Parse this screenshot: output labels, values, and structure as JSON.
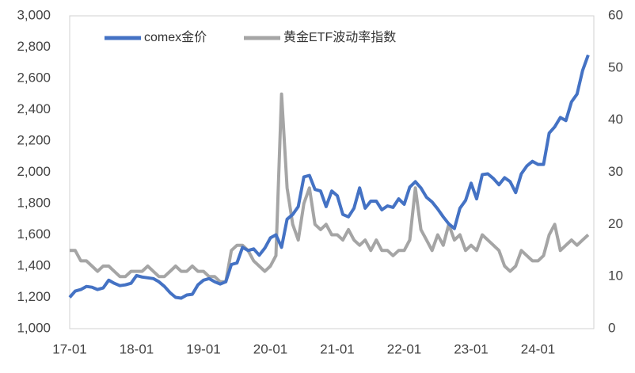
{
  "chart_data": {
    "type": "line",
    "categories": [
      "17-01",
      null,
      null,
      null,
      null,
      null,
      null,
      null,
      null,
      null,
      null,
      null,
      "18-01",
      null,
      null,
      null,
      null,
      null,
      null,
      null,
      null,
      null,
      null,
      null,
      "19-01",
      null,
      null,
      null,
      null,
      null,
      null,
      null,
      null,
      null,
      null,
      null,
      "20-01",
      null,
      null,
      null,
      null,
      null,
      null,
      null,
      null,
      null,
      null,
      null,
      "21-01",
      null,
      null,
      null,
      null,
      null,
      null,
      null,
      null,
      null,
      null,
      null,
      "22-01",
      null,
      null,
      null,
      null,
      null,
      null,
      null,
      null,
      null,
      null,
      null,
      "23-01",
      null,
      null,
      null,
      null,
      null,
      null,
      null,
      null,
      null,
      null,
      null,
      "24-01",
      null,
      null,
      null,
      null,
      null,
      null,
      null,
      null,
      null
    ],
    "series": [
      {
        "name": "comex金价",
        "color": "#4472c4",
        "axis": "y",
        "values": [
          1200,
          1240,
          1250,
          1270,
          1265,
          1250,
          1260,
          1310,
          1290,
          1275,
          1280,
          1290,
          1340,
          1330,
          1325,
          1320,
          1300,
          1270,
          1230,
          1200,
          1195,
          1215,
          1220,
          1280,
          1310,
          1320,
          1300,
          1285,
          1300,
          1410,
          1420,
          1520,
          1500,
          1510,
          1470,
          1515,
          1580,
          1600,
          1520,
          1700,
          1730,
          1780,
          1970,
          1980,
          1890,
          1880,
          1780,
          1880,
          1850,
          1730,
          1715,
          1770,
          1900,
          1770,
          1815,
          1815,
          1760,
          1785,
          1775,
          1830,
          1795,
          1905,
          1940,
          1900,
          1840,
          1810,
          1765,
          1715,
          1670,
          1640,
          1770,
          1820,
          1930,
          1830,
          1985,
          1990,
          1960,
          1920,
          1965,
          1940,
          1870,
          1990,
          2040,
          2070,
          2050,
          2050,
          2250,
          2290,
          2350,
          2330,
          2450,
          2500,
          2650,
          2750
        ]
      },
      {
        "name": "黄金ETF波动率指数",
        "color": "#a5a5a5",
        "axis": "y2",
        "values": [
          15,
          15,
          13,
          13,
          12,
          11,
          12,
          12,
          11,
          10,
          10,
          11,
          11,
          11,
          12,
          11,
          10,
          10,
          11,
          12,
          11,
          11,
          12,
          11,
          11,
          10,
          10,
          9,
          9,
          15,
          16,
          16,
          15,
          13,
          12,
          11,
          12,
          14,
          45,
          27,
          20,
          17,
          24,
          27,
          20,
          19,
          20,
          18,
          18,
          17,
          19,
          17,
          16,
          17,
          15,
          17,
          15,
          15,
          14,
          15,
          15,
          17,
          27,
          19,
          17,
          15,
          18,
          16,
          20,
          17,
          18,
          15,
          16,
          15,
          18,
          17,
          16,
          15,
          12,
          11,
          12,
          15,
          14,
          13,
          13,
          14,
          18,
          20,
          15,
          16,
          17,
          16,
          17,
          18
        ]
      }
    ],
    "ylim": [
      1000,
      3000
    ],
    "yticks": [
      {
        "value": 1000,
        "label": "1,000"
      },
      {
        "value": 1200,
        "label": "1,200"
      },
      {
        "value": 1400,
        "label": "1,400"
      },
      {
        "value": 1600,
        "label": "1,600"
      },
      {
        "value": 1800,
        "label": "1,800"
      },
      {
        "value": 2000,
        "label": "2,000"
      },
      {
        "value": 2200,
        "label": "2,200"
      },
      {
        "value": 2400,
        "label": "2,400"
      },
      {
        "value": 2600,
        "label": "2,600"
      },
      {
        "value": 2800,
        "label": "2,800"
      },
      {
        "value": 3000,
        "label": "3,000"
      }
    ],
    "y2lim": [
      0,
      60
    ],
    "y2ticks": [
      0,
      10,
      20,
      30,
      40,
      50,
      60
    ]
  }
}
